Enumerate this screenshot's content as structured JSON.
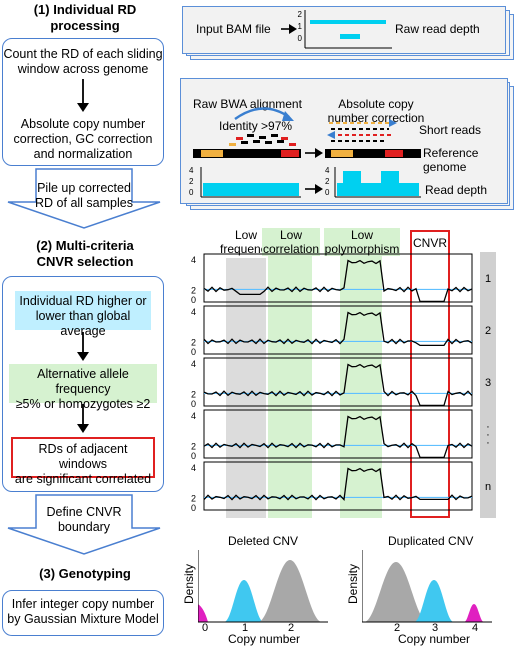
{
  "section1": {
    "title_line1": "(1) Individual RD",
    "title_line2": "processing"
  },
  "box1": {
    "line1": "Count the RD of each sliding",
    "line2": "window across genome"
  },
  "box2": {
    "line1": "Absolute copy number",
    "line2": "correction, GC correction",
    "line3": "and normalization"
  },
  "arrow1": {
    "line1": "Pile up corrected",
    "line2": "RD of all samples"
  },
  "section2": {
    "title_line1": "(2) Multi-criteria",
    "title_line2": "CNVR selection"
  },
  "crit1": {
    "line1": "Individual RD higher or",
    "line2": "lower than global average"
  },
  "crit2": {
    "line1": "Alternative allele frequency",
    "line2": "≥5% or homozygotes ≥2"
  },
  "crit3": {
    "line1": "RDs of adjacent windows",
    "line2": "are significant correlated"
  },
  "arrow2": {
    "line1": "Define CNVR",
    "line2": "boundary"
  },
  "section3": {
    "title": "(3) Genotyping"
  },
  "box3": {
    "line1": "Infer integer copy number",
    "line2": "by Gaussian Mixture Model"
  },
  "panelA": {
    "input": "Input BAM file",
    "output": "Raw read depth",
    "y_ticks": [
      "2",
      "1",
      "0"
    ]
  },
  "panelB": {
    "raw": "Raw BWA alignment",
    "identity": "Identity >97%",
    "abs_line1": "Absolute copy",
    "abs_line2": "number correction",
    "short_reads": "Short reads",
    "reference": "Reference genome",
    "read_depth": "Read depth",
    "y_ticks": [
      "4",
      "2",
      "0"
    ]
  },
  "tracks": {
    "bands": {
      "low_freq_line1": "Low",
      "low_freq_line2": "frequency",
      "low_corr_line1": "Low",
      "low_corr_line2": "correlation",
      "low_poly_line1": "Low",
      "low_poly_line2": "polymorphism",
      "cnvr": "CNVR"
    },
    "sample_labels": [
      "1",
      "2",
      "3",
      "·\n·\n·",
      "n"
    ],
    "y_ticks": [
      "4",
      "2",
      "0"
    ]
  },
  "deleted": {
    "title": "Deleted CNV",
    "ylabel": "Density",
    "xlabel": "Copy number",
    "x_ticks": [
      "0",
      "1",
      "2"
    ]
  },
  "duplicated": {
    "title": "Duplicated CNV",
    "ylabel": "Density",
    "xlabel": "Copy number",
    "x_ticks": [
      "2",
      "3",
      "4"
    ]
  },
  "colors": {
    "blue_border": "#4a7fd0",
    "cyan": "#00d0f0",
    "green_band": "#d6f2d0",
    "gray_band": "#dcdcdc",
    "red": "#e02020",
    "magenta": "#e020c0",
    "gray_peak": "#a8a8a8"
  }
}
